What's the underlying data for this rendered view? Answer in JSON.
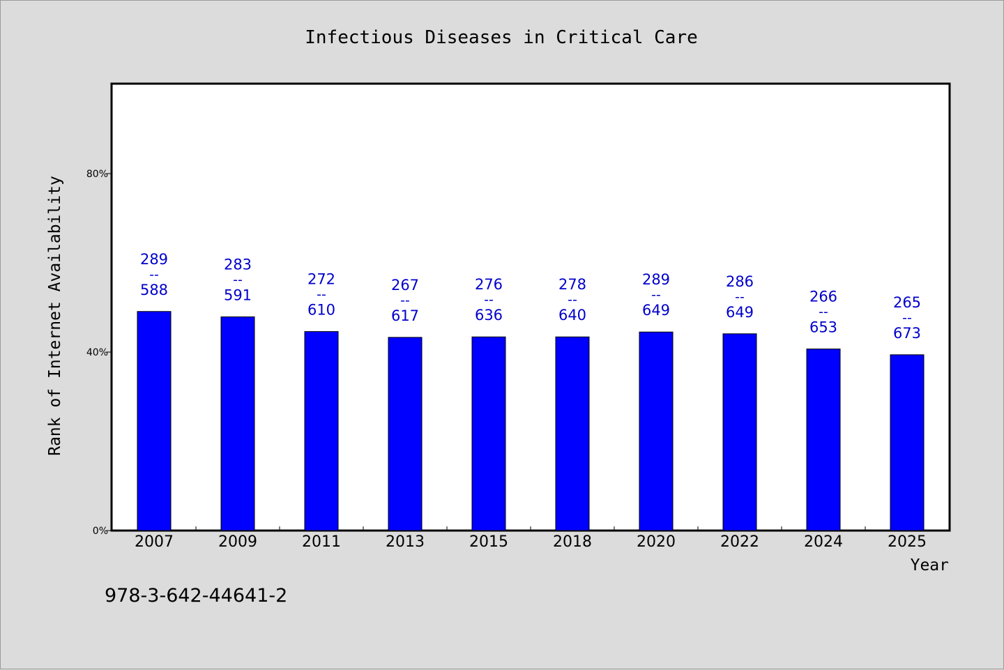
{
  "chart_data": {
    "type": "bar",
    "title": "Infectious Diseases in Critical Care",
    "xlabel": "Year",
    "ylabel": "Rank of Internet Availability",
    "ylim": [
      0,
      100
    ],
    "yticks": [
      {
        "value": 0,
        "label": "0%"
      },
      {
        "value": 40,
        "label": "40%"
      },
      {
        "value": 80,
        "label": "80%"
      }
    ],
    "categories": [
      "2007",
      "2009",
      "2011",
      "2013",
      "2015",
      "2018",
      "2020",
      "2022",
      "2024",
      "2025"
    ],
    "values": [
      49.1,
      47.9,
      44.6,
      43.3,
      43.4,
      43.4,
      44.5,
      44.1,
      40.7,
      39.4
    ],
    "value_labels": [
      {
        "top": "289",
        "sep": "--",
        "bottom": "588"
      },
      {
        "top": "283",
        "sep": "--",
        "bottom": "591"
      },
      {
        "top": "272",
        "sep": "--",
        "bottom": "610"
      },
      {
        "top": "267",
        "sep": "--",
        "bottom": "617"
      },
      {
        "top": "276",
        "sep": "--",
        "bottom": "636"
      },
      {
        "top": "278",
        "sep": "--",
        "bottom": "640"
      },
      {
        "top": "289",
        "sep": "--",
        "bottom": "649"
      },
      {
        "top": "286",
        "sep": "--",
        "bottom": "649"
      },
      {
        "top": "266",
        "sep": "--",
        "bottom": "653"
      },
      {
        "top": "265",
        "sep": "--",
        "bottom": "673"
      }
    ],
    "bar_color": "#0000ff",
    "label_color": "#0000cc",
    "grid": false,
    "legend": "none"
  },
  "footer": {
    "isbn": "978-3-642-44641-2"
  }
}
